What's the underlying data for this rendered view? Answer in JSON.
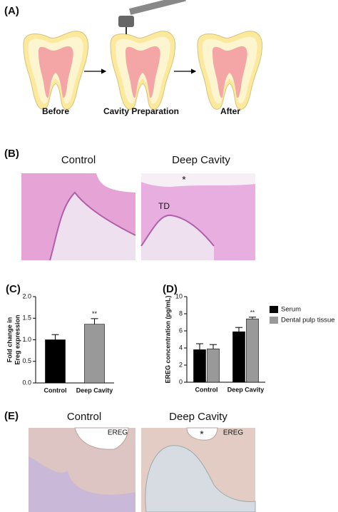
{
  "panels": {
    "a": {
      "label": "(A)",
      "steps": [
        "Before",
        "Cavity Preparation",
        "After"
      ]
    },
    "b": {
      "label": "(B)",
      "titles": [
        "Control",
        "Deep Cavity"
      ],
      "annotations": [
        "*",
        "TD"
      ]
    },
    "e": {
      "label": "(E)",
      "titles": [
        "Control",
        "Deep Cavity"
      ],
      "annotations": [
        "EREG",
        "EREG",
        "*"
      ]
    }
  },
  "chart_data": [
    {
      "type": "bar",
      "panel_label": "(C)",
      "y_label": [
        "Fold change in",
        "Ereg expression"
      ],
      "categories": [
        "Control",
        "Deep Cavity"
      ],
      "values": [
        1.0,
        1.36
      ],
      "errors": [
        0.12,
        0.13
      ],
      "colors": [
        "#000000",
        "#999999"
      ],
      "annotations": [
        "**"
      ],
      "ylim": [
        0,
        2
      ],
      "yticks": [
        {
          "value": 0,
          "label": "0.0"
        },
        {
          "value": 0.5,
          "label": "0.5"
        },
        {
          "value": 1,
          "label": "1.0"
        },
        {
          "value": 1.5,
          "label": "1.5"
        },
        {
          "value": 2,
          "label": "2.0"
        }
      ]
    },
    {
      "type": "grouped-bar",
      "panel_label": "(D)",
      "y_label": "EREG concentration (pg/mL)",
      "categories": [
        "Control",
        "Deep Cavity"
      ],
      "series": [
        {
          "name": "Serum",
          "color": "#000000",
          "values": [
            3.8,
            5.9
          ],
          "errors": [
            0.7,
            0.5
          ]
        },
        {
          "name": "Dental pulp tissue",
          "color": "#999999",
          "values": [
            3.9,
            7.4
          ],
          "errors": [
            0.5,
            0.2
          ]
        }
      ],
      "annotations": [
        "**"
      ],
      "ylim": [
        0,
        10
      ],
      "yticks": [
        0,
        2,
        4,
        6,
        8,
        10
      ]
    }
  ]
}
